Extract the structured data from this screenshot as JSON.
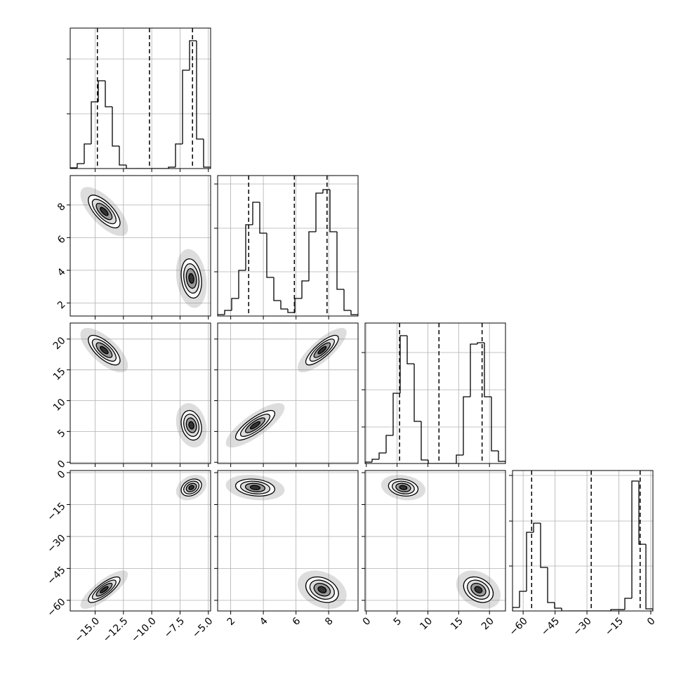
{
  "chart_data": {
    "type": "corner",
    "grid": true,
    "color": "#000000",
    "variables": [
      {
        "xlim": [
          -17.2,
          -4.8
        ],
        "xticks": [
          {
            "value": -15,
            "label": "−15.0"
          },
          {
            "value": -12.5,
            "label": "−12.5"
          },
          {
            "value": -10,
            "label": "−10.0"
          },
          {
            "value": -7.5,
            "label": "−7.5"
          },
          {
            "value": -5,
            "label": "−5.0"
          }
        ],
        "bins": [
          -17.2,
          -16.58,
          -15.96,
          -15.34,
          -14.72,
          -14.1,
          -13.48,
          -12.86,
          -12.24,
          -11.62,
          -11.0,
          -10.38,
          -9.76,
          -9.14,
          -8.52,
          -7.9,
          -7.28,
          -6.66,
          -6.04,
          -5.42,
          -4.8
        ],
        "counts": [
          1,
          7,
          35,
          95,
          125,
          88,
          32,
          5,
          0,
          0,
          0,
          0,
          0,
          0,
          2,
          35,
          140,
          182,
          42,
          2
        ],
        "ylim": [
          0,
          200
        ],
        "yticks": [
          78,
          156
        ],
        "quantiles": [
          -14.8,
          -10.2,
          -6.4
        ]
      },
      {
        "xlim": [
          1.2,
          9.8
        ],
        "xticks": [
          2,
          4,
          6,
          8
        ],
        "bins": [
          1.2,
          1.63,
          2.06,
          2.49,
          2.92,
          3.35,
          3.78,
          4.21,
          4.64,
          5.07,
          5.5,
          5.93,
          6.36,
          6.79,
          7.22,
          7.65,
          8.08,
          8.51,
          8.94,
          9.37,
          9.8
        ],
        "counts": [
          2,
          8,
          25,
          65,
          130,
          162,
          118,
          55,
          22,
          10,
          5,
          25,
          50,
          120,
          175,
          180,
          120,
          38,
          8,
          2
        ],
        "ylim": [
          0,
          200
        ],
        "yticks": [
          63,
          125,
          188
        ],
        "quantiles": [
          3.1,
          5.9,
          7.9
        ]
      },
      {
        "xlim": [
          -0.2,
          22.6
        ],
        "xticks": [
          0,
          5,
          10,
          15,
          20
        ],
        "bins": [
          -0.2,
          0.94,
          2.08,
          3.22,
          4.36,
          5.5,
          6.64,
          7.78,
          8.92,
          10.06,
          11.2,
          12.34,
          13.48,
          14.62,
          15.76,
          16.9,
          18.04,
          19.18,
          20.32,
          21.46,
          22.6
        ],
        "counts": [
          2,
          6,
          15,
          40,
          100,
          182,
          142,
          60,
          5,
          0,
          0,
          0,
          0,
          12,
          95,
          170,
          172,
          95,
          18,
          3
        ],
        "ylim": [
          0,
          200
        ],
        "yticks": [
          52,
          105,
          158
        ],
        "quantiles": [
          5.4,
          11.8,
          18.8
        ]
      },
      {
        "xlim": [
          -65,
          1
        ],
        "xticks": [
          {
            "value": -60,
            "label": "−60"
          },
          {
            "value": -45,
            "label": "−45"
          },
          {
            "value": -30,
            "label": "−30"
          },
          {
            "value": -15,
            "label": "−15"
          },
          0
        ],
        "bins": [
          -65,
          -61.7,
          -58.4,
          -55.1,
          -51.8,
          -48.5,
          -45.2,
          -41.9,
          -38.6,
          -35.3,
          -32,
          -28.7,
          -25.4,
          -22.1,
          -18.8,
          -15.5,
          -12.2,
          -8.9,
          -5.6,
          -2.3,
          1
        ],
        "counts": [
          5,
          28,
          112,
          125,
          62,
          12,
          4,
          0,
          0,
          0,
          0,
          0,
          0,
          0,
          2,
          2,
          18,
          185,
          95,
          3
        ],
        "ylim": [
          0,
          200
        ],
        "yticks": [
          64,
          128,
          193
        ],
        "quantiles": [
          -56,
          -28,
          -5
        ]
      }
    ],
    "modes": [
      {
        "mean": [
          -14.2,
          7.6,
          18.2,
          -55
        ],
        "sd": [
          0.7,
          0.5,
          1.2,
          3.0
        ],
        "corr": [
          -0.7,
          -0.7,
          0.8,
          0.8,
          -0.3,
          -0.3
        ]
      },
      {
        "mean": [
          -6.5,
          3.5,
          6.0,
          -7
        ],
        "sd": [
          0.45,
          0.6,
          1.2,
          2.0
        ],
        "corr": [
          -0.2,
          -0.2,
          0.8,
          0.3,
          -0.2,
          -0.2
        ]
      }
    ]
  }
}
